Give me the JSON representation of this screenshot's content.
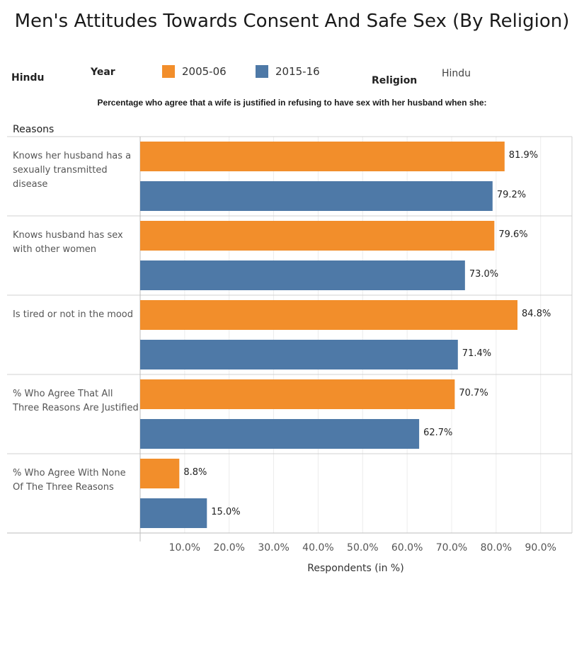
{
  "title": "Men's Attitudes Towards Consent And Safe Sex (By Religion)",
  "filters": {
    "left_value": "Hindu",
    "year_label": "Year",
    "religion_label": "Religion",
    "religion_value": "Hindu"
  },
  "legend": [
    {
      "label": "2005-06",
      "color": "#f28e2b"
    },
    {
      "label": "2015-16",
      "color": "#4e79a7"
    }
  ],
  "subtitle": "Percentage who agree that a wife is justified in refusing to have sex with her husband when she:",
  "chart_data": {
    "type": "bar",
    "orientation": "horizontal",
    "row_header": "Reasons",
    "categories": [
      "Knows her husband has a sexually transmitted disease",
      "Knows husband has sex with other women",
      "Is tired or not in the mood",
      "% Who Agree That All Three Reasons Are Justified",
      "% Who Agree With None Of The Three Reasons"
    ],
    "series": [
      {
        "name": "2005-06",
        "values": [
          81.9,
          79.6,
          84.8,
          70.7,
          8.8
        ],
        "value_labels": [
          "81.9%",
          "79.6%",
          "84.8%",
          "70.7%",
          "8.8%"
        ],
        "color": "#f28e2b"
      },
      {
        "name": "2015-16",
        "values": [
          79.2,
          73.0,
          71.4,
          62.7,
          15.0
        ],
        "value_labels": [
          "79.2%",
          "73.0%",
          "71.4%",
          "62.7%",
          "15.0%"
        ],
        "color": "#4e79a7"
      }
    ],
    "xlabel": "Respondents (in %)",
    "xlim": [
      0,
      97
    ],
    "xticks": [
      10,
      20,
      30,
      40,
      50,
      60,
      70,
      80,
      90
    ],
    "xtick_labels": [
      "10.0%",
      "20.0%",
      "30.0%",
      "40.0%",
      "50.0%",
      "60.0%",
      "70.0%",
      "80.0%",
      "90.0%"
    ],
    "grid": true,
    "legend_position": "top"
  }
}
